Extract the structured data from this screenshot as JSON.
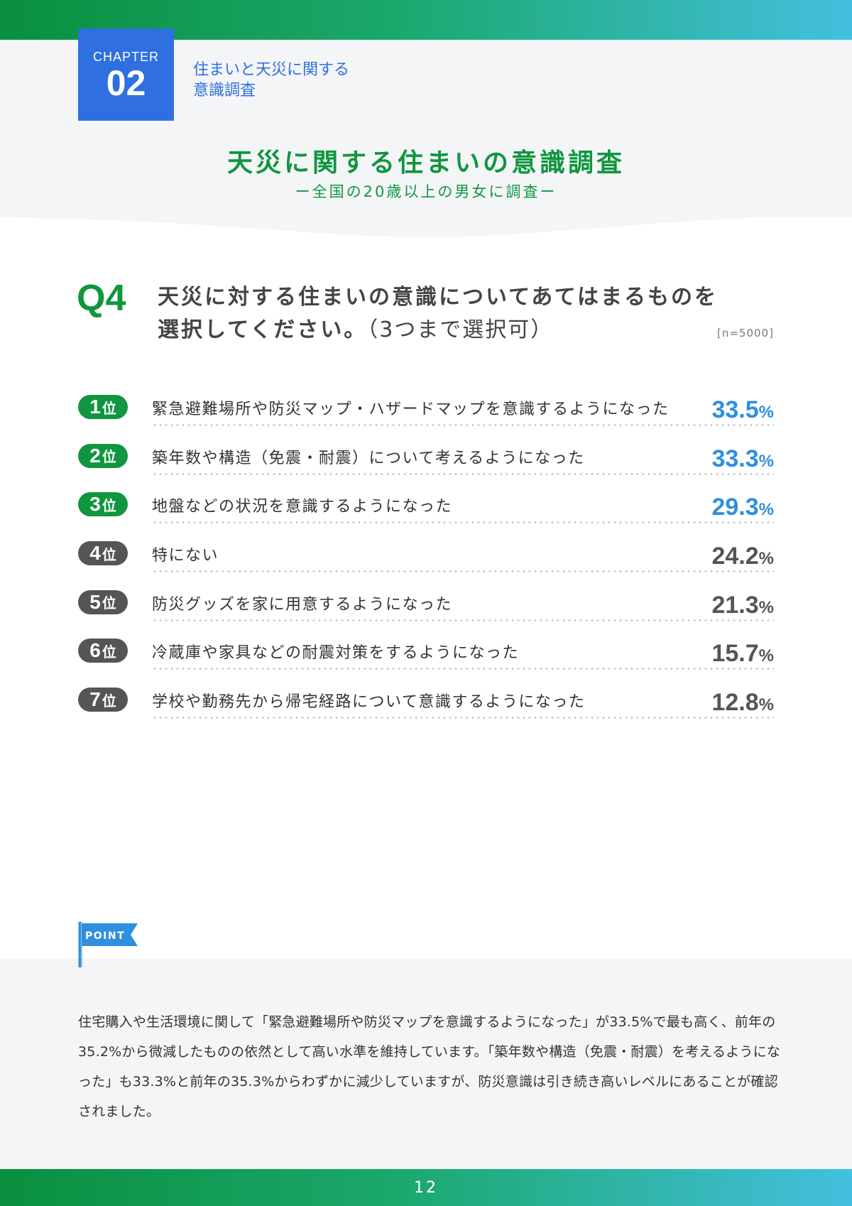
{
  "chapter": {
    "label": "CHAPTER",
    "number": "02",
    "title_line1": "住まいと天災に関する",
    "title_line2": "意識調査"
  },
  "survey": {
    "title": "天災に関する住まいの意識調査",
    "subtitle": "ー全国の20歳以上の男女に調査ー"
  },
  "question": {
    "label": "Q4",
    "line1": "天災に対する住まいの意識についてあてはまるものを",
    "line2": "選択してください。",
    "note": "（3つまで選択可）",
    "sample_size": "[n=5000]"
  },
  "ranking": [
    {
      "rank": "1",
      "suffix": "位",
      "label": "緊急避難場所や防災マップ・ハザードマップを意識するようになった",
      "value": "33.5",
      "unit": "%",
      "highlight": true
    },
    {
      "rank": "2",
      "suffix": "位",
      "label": "築年数や構造（免震・耐震）について考えるようになった",
      "value": "33.3",
      "unit": "%",
      "highlight": true
    },
    {
      "rank": "3",
      "suffix": "位",
      "label": "地盤などの状況を意識するようになった",
      "value": "29.3",
      "unit": "%",
      "highlight": true
    },
    {
      "rank": "4",
      "suffix": "位",
      "label": "特にない",
      "value": "24.2",
      "unit": "%",
      "highlight": false
    },
    {
      "rank": "5",
      "suffix": "位",
      "label": "防災グッズを家に用意するようになった",
      "value": "21.3",
      "unit": "%",
      "highlight": false
    },
    {
      "rank": "6",
      "suffix": "位",
      "label": "冷蔵庫や家具などの耐震対策をするようになった",
      "value": "15.7",
      "unit": "%",
      "highlight": false
    },
    {
      "rank": "7",
      "suffix": "位",
      "label": "学校や勤務先から帰宅経路について意識するようになった",
      "value": "12.8",
      "unit": "%",
      "highlight": false
    }
  ],
  "point": {
    "label": "POINT",
    "body": "住宅購入や生活環境に関して「緊急避難場所や防災マップを意識するようになった」が33.5%で最も高く、前年の35.2%から微減したものの依然として高い水準を維持しています。「築年数や構造（免震・耐震）を考えるようになった」も33.3%と前年の35.3%からわずかに減少していますが、防災意識は引き続き高いレベルにあることが確認されました。"
  },
  "page_number": "12",
  "colors": {
    "green": "#10963f",
    "blue": "#2f6fe0",
    "value_blue": "#2f8fe0",
    "gray": "#555555"
  }
}
